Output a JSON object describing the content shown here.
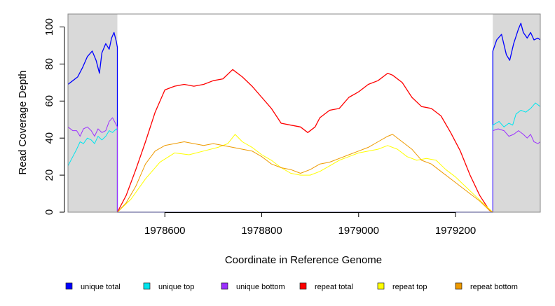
{
  "chart_data": {
    "type": "line",
    "title": "",
    "xlabel": "Coordinate in Reference Genome",
    "ylabel": "Read Coverage Depth",
    "xlim": [
      1978400,
      1979375
    ],
    "ylim": [
      0,
      107
    ],
    "x_ticks": [
      1978600,
      1978800,
      1979000,
      1979200
    ],
    "x_tick_labels": [
      "1978600",
      "1978800",
      "1979000",
      "1979200"
    ],
    "y_ticks": [
      0,
      20,
      40,
      60,
      80,
      100
    ],
    "y_tick_labels": [
      "0",
      "20",
      "40",
      "60",
      "80",
      "100"
    ],
    "grid": false,
    "legend_position": "bottom",
    "shaded_regions": [
      {
        "x": [
          1978400,
          1978502
        ],
        "color": "#d9d9d9"
      },
      {
        "x": [
          1979277,
          1979375
        ],
        "color": "#d9d9d9"
      }
    ],
    "series": [
      {
        "name": "unique total",
        "color": "#0000ff",
        "width": 1.3,
        "points": [
          [
            1978400,
            69
          ],
          [
            1978410,
            71
          ],
          [
            1978420,
            73
          ],
          [
            1978430,
            78
          ],
          [
            1978440,
            84
          ],
          [
            1978450,
            87
          ],
          [
            1978458,
            82
          ],
          [
            1978465,
            75
          ],
          [
            1978470,
            86
          ],
          [
            1978478,
            91
          ],
          [
            1978485,
            88
          ],
          [
            1978490,
            94
          ],
          [
            1978495,
            97
          ],
          [
            1978500,
            92
          ],
          [
            1978502,
            89
          ],
          [
            1978502,
            0
          ],
          [
            1979277,
            0
          ],
          [
            1979277,
            87
          ],
          [
            1979285,
            93
          ],
          [
            1979295,
            96
          ],
          [
            1979305,
            85
          ],
          [
            1979312,
            82
          ],
          [
            1979320,
            91
          ],
          [
            1979330,
            99
          ],
          [
            1979335,
            102
          ],
          [
            1979340,
            97
          ],
          [
            1979348,
            94
          ],
          [
            1979355,
            97
          ],
          [
            1979362,
            93
          ],
          [
            1979370,
            94
          ],
          [
            1979375,
            93
          ]
        ]
      },
      {
        "name": "unique top",
        "color": "#00e5ee",
        "width": 1,
        "points": [
          [
            1978400,
            25
          ],
          [
            1978410,
            30
          ],
          [
            1978418,
            34
          ],
          [
            1978425,
            38
          ],
          [
            1978432,
            37
          ],
          [
            1978440,
            40
          ],
          [
            1978448,
            39
          ],
          [
            1978455,
            37
          ],
          [
            1978462,
            41
          ],
          [
            1978470,
            39
          ],
          [
            1978478,
            41
          ],
          [
            1978485,
            44
          ],
          [
            1978492,
            43
          ],
          [
            1978500,
            45
          ],
          [
            1978502,
            44
          ],
          [
            1978502,
            0
          ],
          [
            1979277,
            0
          ],
          [
            1979277,
            47
          ],
          [
            1979290,
            49
          ],
          [
            1979300,
            46
          ],
          [
            1979310,
            48
          ],
          [
            1979318,
            47
          ],
          [
            1979325,
            53
          ],
          [
            1979335,
            55
          ],
          [
            1979345,
            54
          ],
          [
            1979355,
            56
          ],
          [
            1979365,
            59
          ],
          [
            1979375,
            57
          ]
        ]
      },
      {
        "name": "unique bottom",
        "color": "#9b30ff",
        "width": 1,
        "points": [
          [
            1978400,
            46
          ],
          [
            1978410,
            44
          ],
          [
            1978418,
            44
          ],
          [
            1978425,
            41
          ],
          [
            1978432,
            45
          ],
          [
            1978440,
            46
          ],
          [
            1978448,
            44
          ],
          [
            1978455,
            41
          ],
          [
            1978462,
            45
          ],
          [
            1978470,
            43
          ],
          [
            1978478,
            44
          ],
          [
            1978485,
            49
          ],
          [
            1978492,
            51
          ],
          [
            1978500,
            47
          ],
          [
            1978502,
            46
          ],
          [
            1978502,
            0
          ],
          [
            1979277,
            0
          ],
          [
            1979277,
            44
          ],
          [
            1979288,
            45
          ],
          [
            1979300,
            44
          ],
          [
            1979310,
            41
          ],
          [
            1979320,
            42
          ],
          [
            1979330,
            44
          ],
          [
            1979340,
            42
          ],
          [
            1979348,
            40
          ],
          [
            1979355,
            42
          ],
          [
            1979362,
            38
          ],
          [
            1979370,
            37
          ],
          [
            1979375,
            38
          ]
        ]
      },
      {
        "name": "repeat total",
        "color": "#ff0000",
        "width": 1.3,
        "points": [
          [
            1978502,
            0
          ],
          [
            1978520,
            9
          ],
          [
            1978540,
            23
          ],
          [
            1978560,
            38
          ],
          [
            1978580,
            54
          ],
          [
            1978600,
            66
          ],
          [
            1978620,
            68
          ],
          [
            1978640,
            69
          ],
          [
            1978660,
            68
          ],
          [
            1978680,
            69
          ],
          [
            1978700,
            71
          ],
          [
            1978720,
            72
          ],
          [
            1978740,
            77
          ],
          [
            1978760,
            73
          ],
          [
            1978780,
            68
          ],
          [
            1978800,
            62
          ],
          [
            1978820,
            56
          ],
          [
            1978840,
            48
          ],
          [
            1978860,
            47
          ],
          [
            1978880,
            46
          ],
          [
            1978895,
            43
          ],
          [
            1978910,
            46
          ],
          [
            1978920,
            51
          ],
          [
            1978940,
            55
          ],
          [
            1978960,
            56
          ],
          [
            1978980,
            62
          ],
          [
            1979000,
            65
          ],
          [
            1979020,
            69
          ],
          [
            1979040,
            71
          ],
          [
            1979060,
            75
          ],
          [
            1979070,
            74
          ],
          [
            1979090,
            70
          ],
          [
            1979110,
            62
          ],
          [
            1979130,
            57
          ],
          [
            1979150,
            56
          ],
          [
            1979170,
            52
          ],
          [
            1979190,
            43
          ],
          [
            1979210,
            33
          ],
          [
            1979230,
            20
          ],
          [
            1979250,
            9
          ],
          [
            1979270,
            1
          ],
          [
            1979277,
            0
          ]
        ]
      },
      {
        "name": "repeat top",
        "color": "#ffff00",
        "width": 1,
        "points": [
          [
            1978502,
            0
          ],
          [
            1978530,
            7
          ],
          [
            1978560,
            18
          ],
          [
            1978590,
            27
          ],
          [
            1978620,
            32
          ],
          [
            1978650,
            31
          ],
          [
            1978680,
            33
          ],
          [
            1978710,
            35
          ],
          [
            1978730,
            37
          ],
          [
            1978745,
            42
          ],
          [
            1978760,
            38
          ],
          [
            1978780,
            35
          ],
          [
            1978800,
            31
          ],
          [
            1978820,
            28
          ],
          [
            1978840,
            24
          ],
          [
            1978860,
            21
          ],
          [
            1978880,
            20
          ],
          [
            1978900,
            20
          ],
          [
            1978920,
            22
          ],
          [
            1978940,
            25
          ],
          [
            1978960,
            28
          ],
          [
            1978980,
            30
          ],
          [
            1979000,
            32
          ],
          [
            1979020,
            33
          ],
          [
            1979040,
            34
          ],
          [
            1979060,
            36
          ],
          [
            1979080,
            34
          ],
          [
            1979100,
            30
          ],
          [
            1979120,
            28
          ],
          [
            1979140,
            29
          ],
          [
            1979160,
            28
          ],
          [
            1979180,
            23
          ],
          [
            1979200,
            19
          ],
          [
            1979220,
            14
          ],
          [
            1979240,
            9
          ],
          [
            1979260,
            4
          ],
          [
            1979277,
            0
          ]
        ]
      },
      {
        "name": "repeat bottom",
        "color": "#ee9a00",
        "width": 1,
        "points": [
          [
            1978502,
            0
          ],
          [
            1978520,
            5
          ],
          [
            1978540,
            14
          ],
          [
            1978560,
            26
          ],
          [
            1978580,
            33
          ],
          [
            1978600,
            36
          ],
          [
            1978620,
            37
          ],
          [
            1978640,
            38
          ],
          [
            1978660,
            37
          ],
          [
            1978680,
            36
          ],
          [
            1978700,
            37
          ],
          [
            1978720,
            36
          ],
          [
            1978740,
            35
          ],
          [
            1978760,
            34
          ],
          [
            1978780,
            33
          ],
          [
            1978800,
            30
          ],
          [
            1978820,
            26
          ],
          [
            1978840,
            24
          ],
          [
            1978860,
            23
          ],
          [
            1978880,
            21
          ],
          [
            1978900,
            23
          ],
          [
            1978920,
            26
          ],
          [
            1978940,
            27
          ],
          [
            1978960,
            29
          ],
          [
            1978980,
            31
          ],
          [
            1979000,
            33
          ],
          [
            1979020,
            35
          ],
          [
            1979040,
            38
          ],
          [
            1979060,
            41
          ],
          [
            1979070,
            42
          ],
          [
            1979090,
            38
          ],
          [
            1979110,
            34
          ],
          [
            1979130,
            28
          ],
          [
            1979150,
            26
          ],
          [
            1979170,
            22
          ],
          [
            1979190,
            18
          ],
          [
            1979210,
            14
          ],
          [
            1979230,
            10
          ],
          [
            1979250,
            6
          ],
          [
            1979270,
            1
          ],
          [
            1979277,
            0
          ]
        ]
      }
    ]
  }
}
